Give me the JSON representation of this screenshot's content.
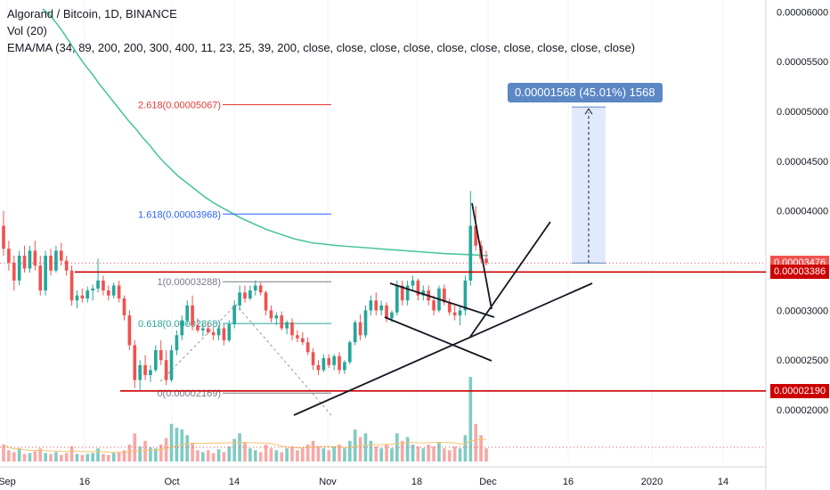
{
  "legend": {
    "title": "Algorand / Bitcoin, 1D, BINANCE",
    "vol": "Vol (20)",
    "ema": "EMA/MA (34, 89, 200, 200, 300, 400, 11, 23, 25, 39, 200, close, close, close, close, close, close, close, close, close, close)"
  },
  "colors": {
    "up": "#26a69a",
    "down": "#ef5350",
    "ema": "#4cc5a0",
    "support": "#cc0000",
    "fib_red": "#e53935",
    "fib_blue": "#2962ff",
    "fib_gray": "#787b86",
    "fib_green": "#26a69a",
    "measure": "#5b87c5"
  },
  "badges": {
    "last_price": "0.00003476",
    "resistance": "0.00003386",
    "support": "0.00002190"
  },
  "measure_label": "0.00001568 (45.01%) 1568",
  "fib_labels": {
    "f2618": "2.618(0.00005067)",
    "f1618": "1.618(0.00003968)",
    "f1": "1(0.00003288)",
    "f0618": "0.618(0.00002868)",
    "f0": "0(0.00002169)"
  },
  "chart_data": {
    "type": "candlestick",
    "symbol": "Algorand / Bitcoin",
    "interval": "1D",
    "exchange": "BINANCE",
    "y_ticks": [
      "0.00006000",
      "0.00005500",
      "0.00005000",
      "0.00004500",
      "0.00004000",
      "0.00003500",
      "0.00003000",
      "0.00002500",
      "0.00002000"
    ],
    "x_ticks": [
      "Sep",
      "16",
      "Oct",
      "14",
      "Nov",
      "18",
      "Dec",
      "16",
      "2020",
      "14"
    ],
    "ylim": [
      1.75e-05,
      6.03e-05
    ],
    "horizontal_levels": [
      3.386e-05,
      2.19e-05
    ],
    "last_price": 3.476e-05,
    "candles": [
      [
        3.85e-05,
        4e-05,
        3.55e-05,
        3.62e-05
      ],
      [
        3.62e-05,
        3.7e-05,
        3.4e-05,
        3.48e-05
      ],
      [
        3.48e-05,
        3.55e-05,
        3.2e-05,
        3.3e-05
      ],
      [
        3.3e-05,
        3.6e-05,
        3.25e-05,
        3.55e-05
      ],
      [
        3.55e-05,
        3.65e-05,
        3.38e-05,
        3.42e-05
      ],
      [
        3.42e-05,
        3.65e-05,
        3.38e-05,
        3.6e-05
      ],
      [
        3.6e-05,
        3.7e-05,
        3.4e-05,
        3.45e-05
      ],
      [
        3.45e-05,
        3.55e-05,
        3.15e-05,
        3.2e-05
      ],
      [
        3.2e-05,
        3.6e-05,
        3.15e-05,
        3.55e-05
      ],
      [
        3.55e-05,
        3.62e-05,
        3.35e-05,
        3.4e-05
      ],
      [
        3.4e-05,
        3.65e-05,
        3.38e-05,
        3.6e-05
      ],
      [
        3.6e-05,
        3.68e-05,
        3.45e-05,
        3.5e-05
      ],
      [
        3.5e-05,
        3.55e-05,
        3.35e-05,
        3.4e-05
      ],
      [
        3.4e-05,
        3.45e-05,
        3.05e-05,
        3.1e-05
      ],
      [
        3.1e-05,
        3.2e-05,
        3.02e-05,
        3.15e-05
      ],
      [
        3.15e-05,
        3.22e-05,
        3.08e-05,
        3.12e-05
      ],
      [
        3.12e-05,
        3.24e-05,
        3.08e-05,
        3.2e-05
      ],
      [
        3.2e-05,
        3.26e-05,
        3.1e-05,
        3.22e-05
      ],
      [
        3.22e-05,
        3.52e-05,
        3.18e-05,
        3.3e-05
      ],
      [
        3.3e-05,
        3.35e-05,
        3.15e-05,
        3.2e-05
      ],
      [
        3.2e-05,
        3.25e-05,
        3.1e-05,
        3.15e-05
      ],
      [
        3.15e-05,
        3.28e-05,
        3.12e-05,
        3.25e-05
      ],
      [
        3.25e-05,
        3.3e-05,
        3.08e-05,
        3.12e-05
      ],
      [
        3.12e-05,
        3.15e-05,
        2.9e-05,
        2.95e-05
      ],
      [
        2.95e-05,
        3e-05,
        2.6e-05,
        2.65e-05
      ],
      [
        2.65e-05,
        2.7e-05,
        2.22e-05,
        2.3e-05
      ],
      [
        2.3e-05,
        2.5e-05,
        2.2e-05,
        2.45e-05
      ],
      [
        2.45e-05,
        2.55e-05,
        2.3e-05,
        2.35e-05
      ],
      [
        2.35e-05,
        2.45e-05,
        2.28e-05,
        2.4e-05
      ],
      [
        2.4e-05,
        2.65e-05,
        2.38e-05,
        2.6e-05
      ],
      [
        2.6e-05,
        2.7e-05,
        2.45e-05,
        2.5e-05
      ],
      [
        2.5e-05,
        2.6e-05,
        2.25e-05,
        2.3e-05
      ],
      [
        2.3e-05,
        2.65e-05,
        2.28e-05,
        2.6e-05
      ],
      [
        2.6e-05,
        2.8e-05,
        2.55e-05,
        2.75e-05
      ],
      [
        2.75e-05,
        2.95e-05,
        2.7e-05,
        2.9e-05
      ],
      [
        2.9e-05,
        3.1e-05,
        2.85e-05,
        3.05e-05
      ],
      [
        3.05e-05,
        3.15e-05,
        2.8e-05,
        2.85e-05
      ],
      [
        2.85e-05,
        2.92e-05,
        2.78e-05,
        2.8e-05
      ],
      [
        2.8e-05,
        2.86e-05,
        2.74e-05,
        2.82e-05
      ],
      [
        2.82e-05,
        2.88e-05,
        2.76e-05,
        2.78e-05
      ],
      [
        2.78e-05,
        2.82e-05,
        2.7e-05,
        2.75e-05
      ],
      [
        2.75e-05,
        2.85e-05,
        2.7e-05,
        2.82e-05
      ],
      [
        2.82e-05,
        2.86e-05,
        2.65e-05,
        2.7e-05
      ],
      [
        2.7e-05,
        2.9e-05,
        2.68e-05,
        2.86e-05
      ],
      [
        2.86e-05,
        3.1e-05,
        2.82e-05,
        3.05e-05
      ],
      [
        3.05e-05,
        3.25e-05,
        3e-05,
        3.18e-05
      ],
      [
        3.18e-05,
        3.25e-05,
        3.08e-05,
        3.12e-05
      ],
      [
        3.12e-05,
        3.25e-05,
        3.1e-05,
        3.2e-05
      ],
      [
        3.2e-05,
        3.3e-05,
        3.15e-05,
        3.25e-05
      ],
      [
        3.25e-05,
        3.28e-05,
        3.15e-05,
        3.18e-05
      ],
      [
        3.18e-05,
        3.2e-05,
        2.95e-05,
        3e-05
      ],
      [
        3e-05,
        3.05e-05,
        2.88e-05,
        2.92e-05
      ],
      [
        2.92e-05,
        2.98e-05,
        2.85e-05,
        2.95e-05
      ],
      [
        2.95e-05,
        2.99e-05,
        2.8e-05,
        2.82e-05
      ],
      [
        2.82e-05,
        2.9e-05,
        2.76e-05,
        2.88e-05
      ],
      [
        2.88e-05,
        2.92e-05,
        2.7e-05,
        2.75e-05
      ],
      [
        2.75e-05,
        2.8e-05,
        2.68e-05,
        2.72e-05
      ],
      [
        2.72e-05,
        2.78e-05,
        2.65e-05,
        2.68e-05
      ],
      [
        2.68e-05,
        2.73e-05,
        2.55e-05,
        2.58e-05
      ],
      [
        2.58e-05,
        2.62e-05,
        2.4e-05,
        2.45e-05
      ],
      [
        2.45e-05,
        2.5e-05,
        2.35e-05,
        2.4e-05
      ],
      [
        2.4e-05,
        2.56e-05,
        2.38e-05,
        2.52e-05
      ],
      [
        2.52e-05,
        2.56e-05,
        2.42e-05,
        2.45e-05
      ],
      [
        2.45e-05,
        2.56e-05,
        2.4e-05,
        2.54e-05
      ],
      [
        2.54e-05,
        2.58e-05,
        2.36e-05,
        2.4e-05
      ],
      [
        2.4e-05,
        2.5e-05,
        2.36e-05,
        2.48e-05
      ],
      [
        2.48e-05,
        2.7e-05,
        2.46e-05,
        2.68e-05
      ],
      [
        2.68e-05,
        2.9e-05,
        2.65e-05,
        2.88e-05
      ],
      [
        2.88e-05,
        2.96e-05,
        2.7e-05,
        2.75e-05
      ],
      [
        2.75e-05,
        3.05e-05,
        2.72e-05,
        3e-05
      ],
      [
        3e-05,
        3.15e-05,
        2.95e-05,
        3.1e-05
      ],
      [
        3.1e-05,
        3.18e-05,
        2.95e-05,
        3e-05
      ],
      [
        3e-05,
        3.1e-05,
        2.95e-05,
        3.05e-05
      ],
      [
        3.05e-05,
        3.08e-05,
        2.88e-05,
        2.92e-05
      ],
      [
        2.92e-05,
        3e-05,
        2.88e-05,
        2.98e-05
      ],
      [
        2.98e-05,
        3.3e-05,
        2.95e-05,
        3.25e-05
      ],
      [
        3.25e-05,
        3.3e-05,
        3.05e-05,
        3.1e-05
      ],
      [
        3.1e-05,
        3.3e-05,
        3.05e-05,
        3.25e-05
      ],
      [
        3.25e-05,
        3.35e-05,
        3.2e-05,
        3.3e-05
      ],
      [
        3.3e-05,
        3.32e-05,
        3.1e-05,
        3.15e-05
      ],
      [
        3.15e-05,
        3.25e-05,
        3.1e-05,
        3.2e-05
      ],
      [
        3.2e-05,
        3.25e-05,
        3.05e-05,
        3.1e-05
      ],
      [
        3.1e-05,
        3.15e-05,
        2.95e-05,
        3e-05
      ],
      [
        3e-05,
        3.25e-05,
        2.98e-05,
        3.22e-05
      ],
      [
        3.22e-05,
        3.26e-05,
        3.05e-05,
        3.08e-05
      ],
      [
        3.08e-05,
        3.12e-05,
        2.95e-05,
        2.98e-05
      ],
      [
        2.98e-05,
        3.05e-05,
        2.9e-05,
        2.95e-05
      ],
      [
        2.95e-05,
        3.05e-05,
        2.85e-05,
        3e-05
      ],
      [
        3e-05,
        3.35e-05,
        2.95e-05,
        3.3e-05
      ],
      [
        3.3e-05,
        4.2e-05,
        3.25e-05,
        3.85e-05
      ],
      [
        3.85e-05,
        4.05e-05,
        3.6e-05,
        3.65e-05
      ],
      [
        3.65e-05,
        3.7e-05,
        3.48e-05,
        3.52e-05
      ],
      [
        3.52e-05,
        3.6e-05,
        3.45e-05,
        3.476e-05
      ]
    ],
    "volumes": [
      18,
      12,
      10,
      14,
      8,
      9,
      11,
      14,
      9,
      8,
      10,
      7,
      9,
      16,
      8,
      7,
      8,
      9,
      14,
      8,
      7,
      9,
      10,
      12,
      18,
      30,
      16,
      22,
      15,
      14,
      18,
      25,
      40,
      36,
      34,
      28,
      20,
      12,
      10,
      12,
      9,
      13,
      10,
      16,
      24,
      30,
      20,
      14,
      12,
      10,
      18,
      14,
      12,
      10,
      14,
      16,
      12,
      14,
      18,
      22,
      16,
      14,
      12,
      16,
      18,
      14,
      22,
      34,
      26,
      30,
      22,
      16,
      14,
      18,
      14,
      30,
      22,
      26,
      18,
      16,
      14,
      18,
      16,
      20,
      14,
      12,
      16,
      14,
      28,
      90,
      40,
      28,
      14
    ],
    "ema_points": [
      [
        48,
        6.03e-05
      ],
      [
        56,
        5.97e-05
      ],
      [
        64,
        5.88e-05
      ],
      [
        72,
        5.78e-05
      ],
      [
        80,
        5.67e-05
      ],
      [
        88,
        5.56e-05
      ],
      [
        96,
        5.46e-05
      ],
      [
        104,
        5.37e-05
      ],
      [
        112,
        5.27e-05
      ],
      [
        120,
        5.18e-05
      ],
      [
        128,
        5.09e-05
      ],
      [
        136,
        5e-05
      ],
      [
        144,
        4.91e-05
      ],
      [
        152,
        4.83e-05
      ],
      [
        160,
        4.74e-05
      ],
      [
        168,
        4.66e-05
      ],
      [
        176,
        4.57e-05
      ],
      [
        184,
        4.49e-05
      ],
      [
        192,
        4.42e-05
      ],
      [
        200,
        4.35e-05
      ],
      [
        210,
        4.28e-05
      ],
      [
        220,
        4.21e-05
      ],
      [
        230,
        4.14e-05
      ],
      [
        240,
        4.08e-05
      ],
      [
        250,
        4.03e-05
      ],
      [
        260,
        3.98e-05
      ],
      [
        270,
        3.93e-05
      ],
      [
        280,
        3.89e-05
      ],
      [
        290,
        3.85e-05
      ],
      [
        300,
        3.81e-05
      ],
      [
        310,
        3.78e-05
      ],
      [
        320,
        3.75e-05
      ],
      [
        330,
        3.72e-05
      ],
      [
        340,
        3.7e-05
      ],
      [
        350,
        3.68e-05
      ]
    ]
  }
}
